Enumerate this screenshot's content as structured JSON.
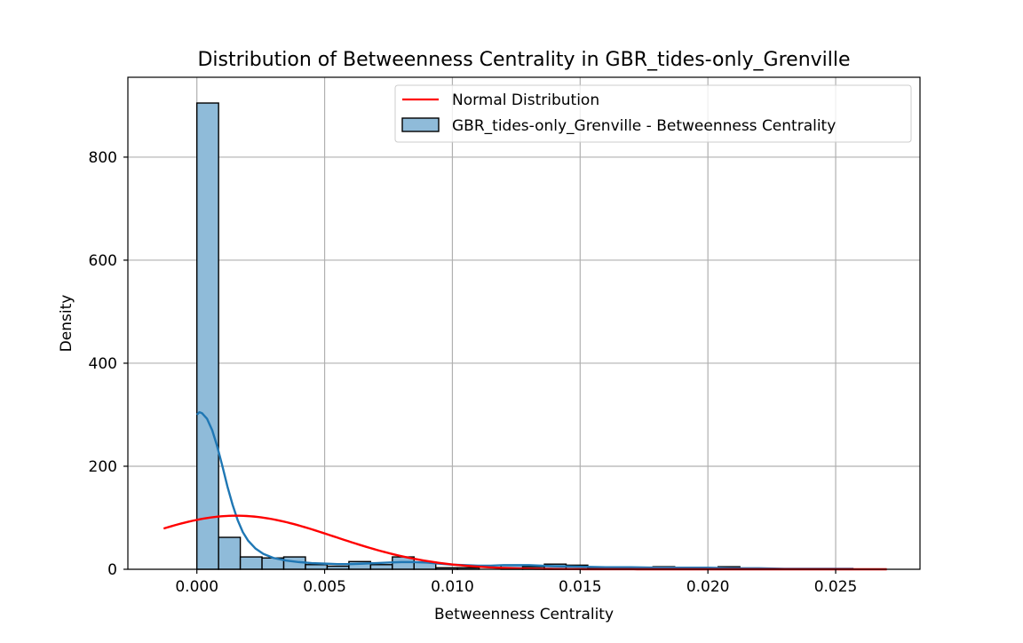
{
  "chart_data": {
    "type": "bar",
    "title": "Distribution of Betweenness Centrality in GBR_tides-only_Grenville",
    "xlabel": "Betweenness Centrality",
    "ylabel": "Density",
    "xlim": [
      -0.0027,
      0.0283
    ],
    "ylim": [
      0,
      955
    ],
    "grid": true,
    "legend_position": "top-right",
    "x_ticks": [
      {
        "value": 0.0,
        "label": "0.000"
      },
      {
        "value": 0.005,
        "label": "0.005"
      },
      {
        "value": 0.01,
        "label": "0.010"
      },
      {
        "value": 0.015,
        "label": "0.015"
      },
      {
        "value": 0.02,
        "label": "0.020"
      },
      {
        "value": 0.025,
        "label": "0.025"
      }
    ],
    "y_ticks": [
      {
        "value": 0,
        "label": "0"
      },
      {
        "value": 200,
        "label": "200"
      },
      {
        "value": 400,
        "label": "400"
      },
      {
        "value": 600,
        "label": "600"
      },
      {
        "value": 800,
        "label": "800"
      }
    ],
    "histogram": {
      "name": "GBR_tides-only_Grenville - Betweenness Centrality",
      "color": "#8fbbd9",
      "edge_color": "#000000",
      "bin_width": 0.00085,
      "bin_starts": [
        0.0,
        0.00085,
        0.0017,
        0.00255,
        0.0034,
        0.00425,
        0.0051,
        0.00595,
        0.0068,
        0.00765,
        0.0085,
        0.00935,
        0.0102,
        0.01105,
        0.0119,
        0.01275,
        0.0136,
        0.01445,
        0.0153,
        0.01615,
        0.017,
        0.01785,
        0.0187,
        0.01955,
        0.0204,
        0.02125,
        0.0221,
        0.02295,
        0.0238,
        0.02465
      ],
      "values": [
        905,
        62,
        24,
        22,
        24,
        9,
        6,
        15,
        9,
        24,
        14,
        3,
        3,
        0,
        8,
        5,
        10,
        8,
        3,
        2,
        2,
        5,
        0,
        2,
        5,
        0,
        0,
        0,
        0,
        1
      ]
    },
    "kde": {
      "color": "#1f77b4",
      "x": [
        0.0,
        0.0001,
        0.0002,
        0.0004,
        0.0006,
        0.0008,
        0.001,
        0.0012,
        0.0014,
        0.0016,
        0.0018,
        0.002,
        0.0023,
        0.0026,
        0.003,
        0.0035,
        0.004,
        0.0045,
        0.005,
        0.0055,
        0.006,
        0.0065,
        0.007,
        0.0075,
        0.008,
        0.0085,
        0.009,
        0.0095,
        0.01,
        0.0105,
        0.011,
        0.0115,
        0.012,
        0.0125,
        0.013,
        0.0135,
        0.014,
        0.015,
        0.016,
        0.017,
        0.018,
        0.019,
        0.02,
        0.021,
        0.022,
        0.023,
        0.024,
        0.025,
        0.0257
      ],
      "y": [
        300,
        305,
        303,
        292,
        270,
        238,
        200,
        160,
        125,
        95,
        72,
        56,
        40,
        30,
        22,
        17,
        14,
        12,
        11,
        10,
        10,
        11,
        12,
        13,
        14,
        14,
        13,
        11,
        9,
        8,
        7,
        7,
        8,
        8,
        8,
        7,
        6,
        5,
        4,
        4,
        3,
        3,
        3,
        2,
        2,
        1,
        1,
        1,
        1
      ]
    },
    "normal": {
      "name": "Normal Distribution",
      "color": "#ff0000",
      "mean": 0.00155,
      "std": 0.00385,
      "peak": 104,
      "x_range": [
        -0.0013,
        0.027
      ]
    }
  }
}
